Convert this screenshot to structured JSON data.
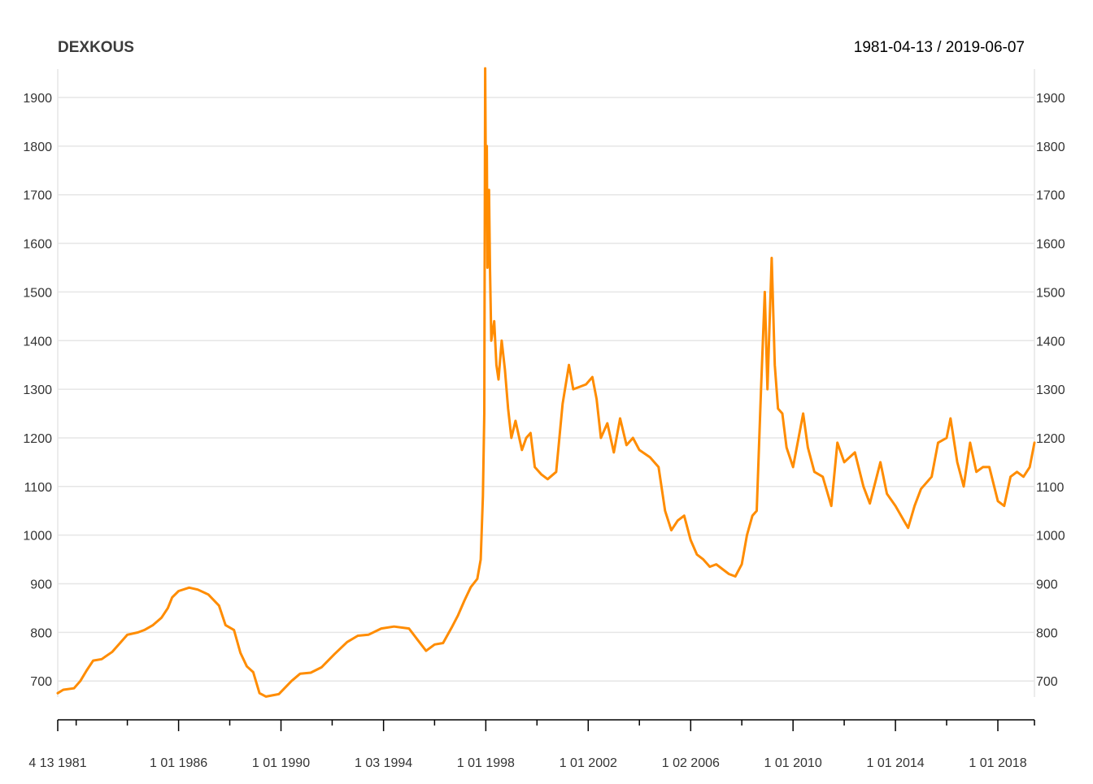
{
  "header": {
    "series_title": "DEXKOUS",
    "date_range": "1981-04-13 / 2019-06-07"
  },
  "chart_data": {
    "type": "line",
    "title": "DEXKOUS",
    "subtitle": "1981-04-13 / 2019-06-07",
    "xlabel": "",
    "ylabel": "",
    "x_range": [
      "1981-04-13",
      "2019-06-07"
    ],
    "ylim": [
      650,
      1960
    ],
    "y_ticks": [
      700,
      800,
      900,
      1000,
      1100,
      1200,
      1300,
      1400,
      1500,
      1600,
      1700,
      1800,
      1900
    ],
    "x_tick_labels": [
      {
        "date": "1981-04-13",
        "label": "4 13 1981"
      },
      {
        "date": "1986-01-01",
        "label": "1 01 1986"
      },
      {
        "date": "1990-01-01",
        "label": "1 01 1990"
      },
      {
        "date": "1994-01-03",
        "label": "1 03 1994"
      },
      {
        "date": "1998-01-01",
        "label": "1 01 1998"
      },
      {
        "date": "2002-01-01",
        "label": "1 01 2002"
      },
      {
        "date": "2006-01-02",
        "label": "1 02 2006"
      },
      {
        "date": "2010-01-01",
        "label": "1 01 2010"
      },
      {
        "date": "2014-01-01",
        "label": "1 01 2014"
      },
      {
        "date": "2018-01-01",
        "label": "1 01 2018"
      }
    ],
    "x_minor_ticks": [
      "1982-01-01",
      "1984-01-01",
      "1988-01-01",
      "1992-01-01",
      "1996-01-01",
      "2000-01-01",
      "2004-01-01",
      "2008-01-01",
      "2012-01-01",
      "2016-01-01",
      "2019-06-07"
    ],
    "grid": true,
    "legend": "none",
    "colors": {
      "line": "#ff8c00",
      "grid": "#e6e6e6",
      "axis": "#000000",
      "tick_text": "#333333"
    },
    "series": [
      {
        "points": [
          [
            "1981-04-13",
            675
          ],
          [
            "1981-07-01",
            682
          ],
          [
            "1981-12-01",
            685
          ],
          [
            "1982-03-01",
            700
          ],
          [
            "1982-06-01",
            722
          ],
          [
            "1982-09-01",
            742
          ],
          [
            "1983-01-01",
            745
          ],
          [
            "1983-06-01",
            760
          ],
          [
            "1983-10-01",
            780
          ],
          [
            "1984-01-01",
            795
          ],
          [
            "1984-06-01",
            800
          ],
          [
            "1984-09-01",
            805
          ],
          [
            "1985-01-01",
            815
          ],
          [
            "1985-05-01",
            830
          ],
          [
            "1985-08-01",
            850
          ],
          [
            "1985-10-01",
            872
          ],
          [
            "1986-01-01",
            885
          ],
          [
            "1986-06-01",
            892
          ],
          [
            "1986-10-01",
            888
          ],
          [
            "1987-03-01",
            878
          ],
          [
            "1987-08-01",
            855
          ],
          [
            "1987-11-01",
            815
          ],
          [
            "1988-03-01",
            805
          ],
          [
            "1988-06-01",
            758
          ],
          [
            "1988-09-01",
            730
          ],
          [
            "1988-12-01",
            718
          ],
          [
            "1989-03-01",
            675
          ],
          [
            "1989-06-01",
            668
          ],
          [
            "1989-12-01",
            673
          ],
          [
            "1990-06-01",
            700
          ],
          [
            "1990-10-01",
            715
          ],
          [
            "1991-03-01",
            717
          ],
          [
            "1991-08-01",
            728
          ],
          [
            "1992-02-01",
            755
          ],
          [
            "1992-08-01",
            780
          ],
          [
            "1993-01-01",
            793
          ],
          [
            "1993-06-01",
            795
          ],
          [
            "1993-12-01",
            808
          ],
          [
            "1994-06-01",
            812
          ],
          [
            "1995-01-01",
            808
          ],
          [
            "1995-05-01",
            785
          ],
          [
            "1995-09-01",
            762
          ],
          [
            "1996-01-01",
            775
          ],
          [
            "1996-05-01",
            778
          ],
          [
            "1996-09-01",
            810
          ],
          [
            "1996-12-01",
            835
          ],
          [
            "1997-03-01",
            865
          ],
          [
            "1997-06-01",
            893
          ],
          [
            "1997-09-01",
            910
          ],
          [
            "1997-10-20",
            950
          ],
          [
            "1997-11-20",
            1080
          ],
          [
            "1997-12-10",
            1250
          ],
          [
            "1997-12-23",
            1960
          ],
          [
            "1998-01-05",
            1650
          ],
          [
            "1998-01-15",
            1800
          ],
          [
            "1998-01-25",
            1550
          ],
          [
            "1998-02-15",
            1710
          ],
          [
            "1998-03-01",
            1550
          ],
          [
            "1998-03-20",
            1400
          ],
          [
            "1998-05-01",
            1440
          ],
          [
            "1998-06-01",
            1350
          ],
          [
            "1998-07-01",
            1320
          ],
          [
            "1998-08-15",
            1400
          ],
          [
            "1998-10-01",
            1340
          ],
          [
            "1998-11-15",
            1260
          ],
          [
            "1999-01-01",
            1200
          ],
          [
            "1999-03-01",
            1235
          ],
          [
            "1999-06-01",
            1175
          ],
          [
            "1999-08-01",
            1200
          ],
          [
            "1999-10-01",
            1210
          ],
          [
            "1999-12-01",
            1140
          ],
          [
            "2000-03-01",
            1125
          ],
          [
            "2000-06-01",
            1115
          ],
          [
            "2000-10-01",
            1130
          ],
          [
            "2001-01-01",
            1270
          ],
          [
            "2001-04-01",
            1350
          ],
          [
            "2001-06-01",
            1300
          ],
          [
            "2001-09-01",
            1305
          ],
          [
            "2001-12-01",
            1310
          ],
          [
            "2002-03-01",
            1325
          ],
          [
            "2002-05-01",
            1280
          ],
          [
            "2002-07-01",
            1200
          ],
          [
            "2002-10-01",
            1230
          ],
          [
            "2003-01-01",
            1170
          ],
          [
            "2003-04-01",
            1240
          ],
          [
            "2003-07-01",
            1185
          ],
          [
            "2003-10-01",
            1200
          ],
          [
            "2004-01-01",
            1175
          ],
          [
            "2004-06-01",
            1160
          ],
          [
            "2004-10-01",
            1140
          ],
          [
            "2005-01-01",
            1050
          ],
          [
            "2005-04-01",
            1010
          ],
          [
            "2005-07-01",
            1030
          ],
          [
            "2005-10-01",
            1040
          ],
          [
            "2006-01-01",
            990
          ],
          [
            "2006-04-01",
            960
          ],
          [
            "2006-07-01",
            950
          ],
          [
            "2006-10-01",
            935
          ],
          [
            "2007-01-01",
            940
          ],
          [
            "2007-04-01",
            930
          ],
          [
            "2007-07-01",
            920
          ],
          [
            "2007-10-01",
            915
          ],
          [
            "2008-01-01",
            940
          ],
          [
            "2008-03-15",
            1000
          ],
          [
            "2008-06-01",
            1040
          ],
          [
            "2008-08-01",
            1050
          ],
          [
            "2008-10-01",
            1300
          ],
          [
            "2008-11-24",
            1500
          ],
          [
            "2009-01-01",
            1300
          ],
          [
            "2009-03-02",
            1570
          ],
          [
            "2009-04-15",
            1350
          ],
          [
            "2009-06-01",
            1260
          ],
          [
            "2009-08-01",
            1250
          ],
          [
            "2009-10-01",
            1180
          ],
          [
            "2010-01-01",
            1140
          ],
          [
            "2010-05-25",
            1250
          ],
          [
            "2010-08-01",
            1180
          ],
          [
            "2010-11-01",
            1130
          ],
          [
            "2011-03-01",
            1120
          ],
          [
            "2011-07-01",
            1060
          ],
          [
            "2011-09-26",
            1190
          ],
          [
            "2012-01-01",
            1150
          ],
          [
            "2012-06-01",
            1170
          ],
          [
            "2012-10-01",
            1100
          ],
          [
            "2013-01-01",
            1065
          ],
          [
            "2013-06-01",
            1150
          ],
          [
            "2013-09-01",
            1085
          ],
          [
            "2014-01-01",
            1060
          ],
          [
            "2014-05-01",
            1030
          ],
          [
            "2014-07-01",
            1015
          ],
          [
            "2014-10-01",
            1060
          ],
          [
            "2015-01-01",
            1095
          ],
          [
            "2015-06-01",
            1120
          ],
          [
            "2015-09-01",
            1190
          ],
          [
            "2016-01-01",
            1200
          ],
          [
            "2016-02-26",
            1240
          ],
          [
            "2016-06-01",
            1150
          ],
          [
            "2016-09-01",
            1100
          ],
          [
            "2016-12-01",
            1190
          ],
          [
            "2017-03-01",
            1130
          ],
          [
            "2017-06-01",
            1140
          ],
          [
            "2017-09-01",
            1140
          ],
          [
            "2018-01-01",
            1070
          ],
          [
            "2018-04-01",
            1060
          ],
          [
            "2018-07-01",
            1120
          ],
          [
            "2018-10-01",
            1130
          ],
          [
            "2019-01-01",
            1120
          ],
          [
            "2019-04-01",
            1140
          ],
          [
            "2019-06-07",
            1190
          ]
        ]
      }
    ]
  }
}
